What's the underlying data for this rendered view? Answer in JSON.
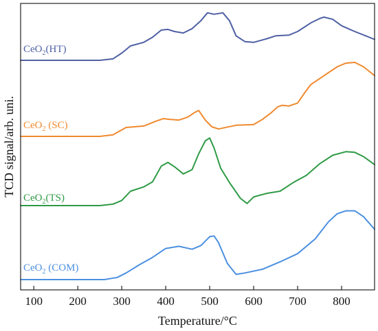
{
  "chart_data": {
    "type": "line",
    "xlabel": "Temperature/°C",
    "ylabel": "TCD signal/arb. uni.",
    "xlim": [
      70,
      875
    ],
    "xticks": [
      100,
      200,
      300,
      400,
      500,
      600,
      700,
      800
    ],
    "yticks_shown": false,
    "grid": false,
    "legend": "inline labels at left of each curve",
    "series": [
      {
        "name": "CeO₂(HT)",
        "label_main": "CeO",
        "label_sub": "2",
        "label_tail": "(HT)",
        "color": "#4e5fa3",
        "x": [
          70,
          150,
          250,
          280,
          300,
          320,
          350,
          370,
          390,
          405,
          420,
          440,
          460,
          480,
          495,
          510,
          530,
          545,
          560,
          580,
          600,
          630,
          650,
          680,
          700,
          730,
          750,
          760,
          780,
          800,
          830,
          855,
          875
        ],
        "y": [
          0.0,
          0.0,
          0.0,
          0.02,
          0.1,
          0.2,
          0.25,
          0.32,
          0.42,
          0.43,
          0.4,
          0.38,
          0.44,
          0.55,
          0.66,
          0.64,
          0.66,
          0.55,
          0.34,
          0.26,
          0.25,
          0.3,
          0.34,
          0.35,
          0.4,
          0.52,
          0.58,
          0.6,
          0.57,
          0.48,
          0.4,
          0.34,
          0.29
        ]
      },
      {
        "name": "CeO₂ (SC)",
        "label_main": "CeO",
        "label_sub": "2",
        "label_tail": " (SC)",
        "color": "#f0892e",
        "x": [
          70,
          150,
          250,
          280,
          310,
          350,
          380,
          395,
          410,
          430,
          450,
          465,
          475,
          490,
          505,
          520,
          560,
          600,
          620,
          640,
          655,
          665,
          680,
          700,
          715,
          730,
          760,
          790,
          810,
          830,
          850,
          875
        ],
        "y": [
          0.0,
          0.0,
          0.0,
          0.02,
          0.12,
          0.14,
          0.21,
          0.24,
          0.23,
          0.22,
          0.26,
          0.32,
          0.35,
          0.22,
          0.13,
          0.1,
          0.15,
          0.16,
          0.23,
          0.32,
          0.4,
          0.42,
          0.41,
          0.45,
          0.58,
          0.7,
          0.82,
          0.94,
          0.99,
          1.0,
          0.94,
          0.82
        ]
      },
      {
        "name": "CeO₂(TS)",
        "label_main": "CeO",
        "label_sub": "2",
        "label_tail": "(TS)",
        "color": "#2e9a45",
        "x": [
          70,
          150,
          250,
          280,
          300,
          320,
          350,
          370,
          390,
          405,
          420,
          440,
          460,
          475,
          490,
          500,
          510,
          525,
          545,
          570,
          585,
          600,
          630,
          660,
          690,
          720,
          750,
          780,
          810,
          830,
          850,
          875
        ],
        "y": [
          0.0,
          0.0,
          0.0,
          0.02,
          0.07,
          0.2,
          0.26,
          0.33,
          0.55,
          0.6,
          0.54,
          0.44,
          0.5,
          0.72,
          0.9,
          0.94,
          0.8,
          0.52,
          0.32,
          0.1,
          0.03,
          0.12,
          0.17,
          0.2,
          0.32,
          0.42,
          0.58,
          0.7,
          0.75,
          0.74,
          0.68,
          0.57
        ]
      },
      {
        "name": "CeO₂ (COM)",
        "label_main": "CeO",
        "label_sub": "2",
        "label_tail": " (COM)",
        "color": "#4a8fe0",
        "x": [
          70,
          150,
          260,
          290,
          310,
          340,
          370,
          400,
          430,
          460,
          480,
          500,
          510,
          520,
          540,
          560,
          580,
          620,
          660,
          700,
          740,
          770,
          790,
          810,
          830,
          850,
          875
        ],
        "y": [
          0.0,
          0.0,
          0.0,
          0.03,
          0.09,
          0.2,
          0.3,
          0.42,
          0.45,
          0.41,
          0.46,
          0.58,
          0.59,
          0.5,
          0.22,
          0.07,
          0.09,
          0.14,
          0.24,
          0.35,
          0.55,
          0.78,
          0.89,
          0.93,
          0.93,
          0.85,
          0.68
        ]
      }
    ]
  }
}
